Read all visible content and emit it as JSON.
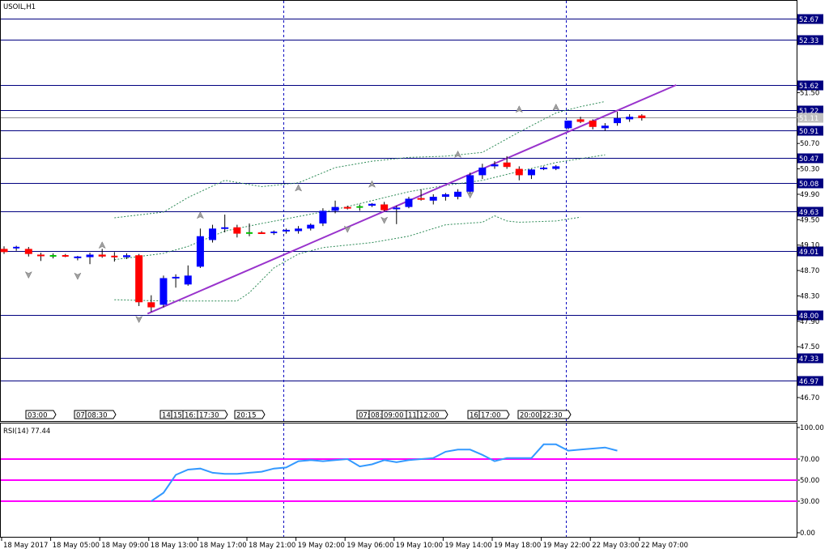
{
  "chart_title": "USOIL,H1",
  "rsi_title": "RSI(14) 77.44",
  "colors": {
    "up": "#0000ff",
    "down": "#ff0000",
    "doji": "#00c000",
    "hline": "#000080",
    "vline": "#0000c0",
    "trend": "#9933cc",
    "bands": "#2e8b57",
    "rsi": "#3399ff",
    "rsi_level": "#ff00ff",
    "tag_bg": "#000080",
    "arrow": "#a0a0a0"
  },
  "chart_data": [
    {
      "type": "candlestick",
      "title": "USOIL,H1",
      "ylim": [
        46.45,
        53.0
      ],
      "y_ticks": [
        "51.50",
        "50.70",
        "50.30",
        "49.90",
        "49.50",
        "49.10",
        "48.70",
        "48.30",
        "47.90",
        "47.50",
        "46.70"
      ],
      "price_levels": [
        "52.67",
        "52.33",
        "51.62",
        "51.22",
        "50.91",
        "50.47",
        "50.08",
        "49.63",
        "49.01",
        "48.00",
        "47.33",
        "46.97"
      ],
      "current_price": "51.11",
      "candles": [
        {
          "o": 49.04,
          "h": 49.08,
          "l": 48.96,
          "c": 48.99
        },
        {
          "o": 49.05,
          "h": 49.09,
          "l": 49.01,
          "c": 49.06
        },
        {
          "o": 49.04,
          "h": 49.07,
          "l": 48.92,
          "c": 48.96
        },
        {
          "o": 48.95,
          "h": 48.98,
          "l": 48.85,
          "c": 48.93
        },
        {
          "o": 48.93,
          "h": 48.97,
          "l": 48.89,
          "c": 48.93
        },
        {
          "o": 48.93,
          "h": 48.96,
          "l": 48.91,
          "c": 48.92
        },
        {
          "o": 48.9,
          "h": 48.93,
          "l": 48.86,
          "c": 48.92
        },
        {
          "o": 48.91,
          "h": 48.98,
          "l": 48.8,
          "c": 48.95
        },
        {
          "o": 48.95,
          "h": 49.04,
          "l": 48.9,
          "c": 48.92
        },
        {
          "o": 48.92,
          "h": 48.99,
          "l": 48.84,
          "c": 48.91
        },
        {
          "o": 48.91,
          "h": 48.97,
          "l": 48.88,
          "c": 48.94
        },
        {
          "o": 48.94,
          "h": 48.96,
          "l": 48.14,
          "c": 48.2
        },
        {
          "o": 48.2,
          "h": 48.31,
          "l": 48.05,
          "c": 48.12
        },
        {
          "o": 48.16,
          "h": 48.62,
          "l": 48.12,
          "c": 48.58
        },
        {
          "o": 48.58,
          "h": 48.64,
          "l": 48.43,
          "c": 48.6
        },
        {
          "o": 48.48,
          "h": 48.78,
          "l": 48.46,
          "c": 48.62
        },
        {
          "o": 48.76,
          "h": 49.36,
          "l": 48.74,
          "c": 49.24
        },
        {
          "o": 49.18,
          "h": 49.42,
          "l": 49.14,
          "c": 49.36
        },
        {
          "o": 49.36,
          "h": 49.58,
          "l": 49.3,
          "c": 49.38
        },
        {
          "o": 49.38,
          "h": 49.42,
          "l": 49.22,
          "c": 49.28
        },
        {
          "o": 49.29,
          "h": 49.44,
          "l": 49.24,
          "c": 49.29
        },
        {
          "o": 49.3,
          "h": 49.32,
          "l": 49.28,
          "c": 49.28
        },
        {
          "o": 49.29,
          "h": 49.33,
          "l": 49.26,
          "c": 49.3
        },
        {
          "o": 49.32,
          "h": 49.36,
          "l": 49.28,
          "c": 49.34
        },
        {
          "o": 49.32,
          "h": 49.4,
          "l": 49.28,
          "c": 49.36
        },
        {
          "o": 49.36,
          "h": 49.44,
          "l": 49.33,
          "c": 49.42
        },
        {
          "o": 49.44,
          "h": 49.68,
          "l": 49.4,
          "c": 49.64
        },
        {
          "o": 49.64,
          "h": 49.8,
          "l": 49.6,
          "c": 49.7
        },
        {
          "o": 49.7,
          "h": 49.72,
          "l": 49.66,
          "c": 49.68
        },
        {
          "o": 49.7,
          "h": 49.74,
          "l": 49.64,
          "c": 49.7
        },
        {
          "o": 49.72,
          "h": 49.76,
          "l": 49.7,
          "c": 49.75
        },
        {
          "o": 49.74,
          "h": 49.78,
          "l": 49.63,
          "c": 49.65
        },
        {
          "o": 49.67,
          "h": 49.72,
          "l": 49.43,
          "c": 49.69
        },
        {
          "o": 49.7,
          "h": 49.86,
          "l": 49.68,
          "c": 49.83
        },
        {
          "o": 49.84,
          "h": 49.98,
          "l": 49.8,
          "c": 49.82
        },
        {
          "o": 49.8,
          "h": 49.9,
          "l": 49.74,
          "c": 49.86
        },
        {
          "o": 49.86,
          "h": 49.92,
          "l": 49.8,
          "c": 49.9
        },
        {
          "o": 49.86,
          "h": 49.98,
          "l": 49.82,
          "c": 49.94
        },
        {
          "o": 49.94,
          "h": 50.24,
          "l": 49.9,
          "c": 50.2
        },
        {
          "o": 50.2,
          "h": 50.38,
          "l": 50.14,
          "c": 50.32
        },
        {
          "o": 50.34,
          "h": 50.42,
          "l": 50.3,
          "c": 50.37
        },
        {
          "o": 50.4,
          "h": 50.5,
          "l": 50.3,
          "c": 50.33
        },
        {
          "o": 50.3,
          "h": 50.34,
          "l": 50.12,
          "c": 50.2
        },
        {
          "o": 50.2,
          "h": 50.3,
          "l": 50.14,
          "c": 50.29
        },
        {
          "o": 50.3,
          "h": 50.34,
          "l": 50.28,
          "c": 50.32
        },
        {
          "o": 50.3,
          "h": 50.36,
          "l": 50.28,
          "c": 50.34
        },
        {
          "o": 50.94,
          "h": 51.06,
          "l": 50.92,
          "c": 51.06
        },
        {
          "o": 51.08,
          "h": 51.12,
          "l": 51.02,
          "c": 51.04
        },
        {
          "o": 51.06,
          "h": 51.08,
          "l": 50.92,
          "c": 50.96
        },
        {
          "o": 50.94,
          "h": 51.02,
          "l": 50.9,
          "c": 50.98
        },
        {
          "o": 51.02,
          "h": 51.2,
          "l": 50.98,
          "c": 51.1
        },
        {
          "o": 51.08,
          "h": 51.16,
          "l": 51.04,
          "c": 51.12
        },
        {
          "o": 51.14,
          "h": 51.16,
          "l": 51.06,
          "c": 51.1
        }
      ],
      "band_upper": [
        [
          9,
          49.53
        ],
        [
          13,
          49.62
        ],
        [
          15,
          49.85
        ],
        [
          18,
          50.12
        ],
        [
          21,
          50.02
        ],
        [
          24,
          50.08
        ],
        [
          27,
          50.32
        ],
        [
          30,
          50.42
        ],
        [
          33,
          50.48
        ],
        [
          36,
          50.5
        ],
        [
          39,
          50.56
        ],
        [
          42,
          50.88
        ],
        [
          45,
          51.18
        ],
        [
          47,
          51.28
        ],
        [
          49,
          51.36
        ]
      ],
      "band_middle": [
        [
          9,
          48.87
        ],
        [
          13,
          48.97
        ],
        [
          15,
          49.08
        ],
        [
          18,
          49.32
        ],
        [
          21,
          49.44
        ],
        [
          24,
          49.55
        ],
        [
          27,
          49.66
        ],
        [
          30,
          49.8
        ],
        [
          33,
          49.94
        ],
        [
          36,
          50.04
        ],
        [
          39,
          50.12
        ],
        [
          42,
          50.26
        ],
        [
          45,
          50.4
        ],
        [
          49,
          50.52
        ]
      ],
      "band_lower": [
        [
          9,
          48.24
        ],
        [
          13,
          48.22
        ],
        [
          16,
          48.22
        ],
        [
          19,
          48.22
        ],
        [
          20,
          48.35
        ],
        [
          22,
          48.74
        ],
        [
          24,
          48.96
        ],
        [
          26,
          49.06
        ],
        [
          28,
          49.1
        ],
        [
          30,
          49.14
        ],
        [
          33,
          49.24
        ],
        [
          36,
          49.42
        ],
        [
          39,
          49.46
        ],
        [
          40,
          49.56
        ],
        [
          41,
          49.48
        ],
        [
          42,
          49.46
        ],
        [
          45,
          49.48
        ],
        [
          47,
          49.54
        ]
      ],
      "trendline": {
        "x0": 11.7,
        "y0": 48.02,
        "x1": 54.8,
        "y1": 51.62
      },
      "arrows_up": [
        [
          8,
          49.05
        ],
        [
          16,
          49.52
        ],
        [
          24,
          49.95
        ],
        [
          30,
          50.01
        ],
        [
          37,
          50.48
        ],
        [
          42,
          51.19
        ],
        [
          45,
          51.22
        ]
      ],
      "arrows_down": [
        [
          2,
          48.68
        ],
        [
          6,
          48.66
        ],
        [
          11,
          47.98
        ],
        [
          28,
          49.4
        ],
        [
          31,
          49.54
        ],
        [
          38,
          49.94
        ]
      ]
    },
    {
      "type": "line",
      "title": "RSI(14) 77.44",
      "ylim": [
        0,
        100
      ],
      "y_ticks": [
        "100.00",
        "70.00",
        "50.00",
        "30.00",
        "0.00"
      ],
      "levels": [
        70,
        50,
        30
      ],
      "values": [
        {
          "i": 12,
          "v": 30
        },
        {
          "i": 13,
          "v": 38
        },
        {
          "i": 14,
          "v": 55
        },
        {
          "i": 15,
          "v": 60
        },
        {
          "i": 16,
          "v": 61
        },
        {
          "i": 17,
          "v": 57
        },
        {
          "i": 18,
          "v": 56
        },
        {
          "i": 19,
          "v": 56
        },
        {
          "i": 20,
          "v": 57
        },
        {
          "i": 21,
          "v": 58
        },
        {
          "i": 22,
          "v": 61
        },
        {
          "i": 23,
          "v": 62
        },
        {
          "i": 24,
          "v": 68
        },
        {
          "i": 25,
          "v": 69
        },
        {
          "i": 26,
          "v": 68
        },
        {
          "i": 27,
          "v": 69
        },
        {
          "i": 28,
          "v": 70
        },
        {
          "i": 29,
          "v": 63
        },
        {
          "i": 30,
          "v": 65
        },
        {
          "i": 31,
          "v": 69
        },
        {
          "i": 32,
          "v": 67
        },
        {
          "i": 33,
          "v": 69
        },
        {
          "i": 34,
          "v": 70
        },
        {
          "i": 35,
          "v": 71
        },
        {
          "i": 36,
          "v": 77
        },
        {
          "i": 37,
          "v": 79
        },
        {
          "i": 38,
          "v": 79
        },
        {
          "i": 39,
          "v": 74
        },
        {
          "i": 40,
          "v": 68
        },
        {
          "i": 41,
          "v": 71
        },
        {
          "i": 42,
          "v": 71
        },
        {
          "i": 43,
          "v": 71
        },
        {
          "i": 44,
          "v": 84
        },
        {
          "i": 45,
          "v": 84
        },
        {
          "i": 46,
          "v": 78
        },
        {
          "i": 47,
          "v": 79
        },
        {
          "i": 48,
          "v": 80
        },
        {
          "i": 49,
          "v": 81
        },
        {
          "i": 50,
          "v": 78
        }
      ]
    }
  ],
  "x_axis_labels": [
    "18 May 2017",
    "18 May 05:00",
    "18 May 09:00",
    "18 May 13:00",
    "18 May 17:00",
    "18 May 21:00",
    "19 May 02:00",
    "19 May 06:00",
    "19 May 10:00",
    "19 May 14:00",
    "19 May 18:00",
    "19 May 22:00",
    "22 May 03:00",
    "22 May 07:00"
  ],
  "time_markers": [
    "03:00",
    "07:",
    "08:30",
    "14:",
    "15:",
    "16:",
    "17:30",
    "20:15",
    "07:",
    "08:",
    "09:00",
    "11:",
    "12:00",
    "16:",
    "17:00",
    "20:00",
    "22:30"
  ]
}
